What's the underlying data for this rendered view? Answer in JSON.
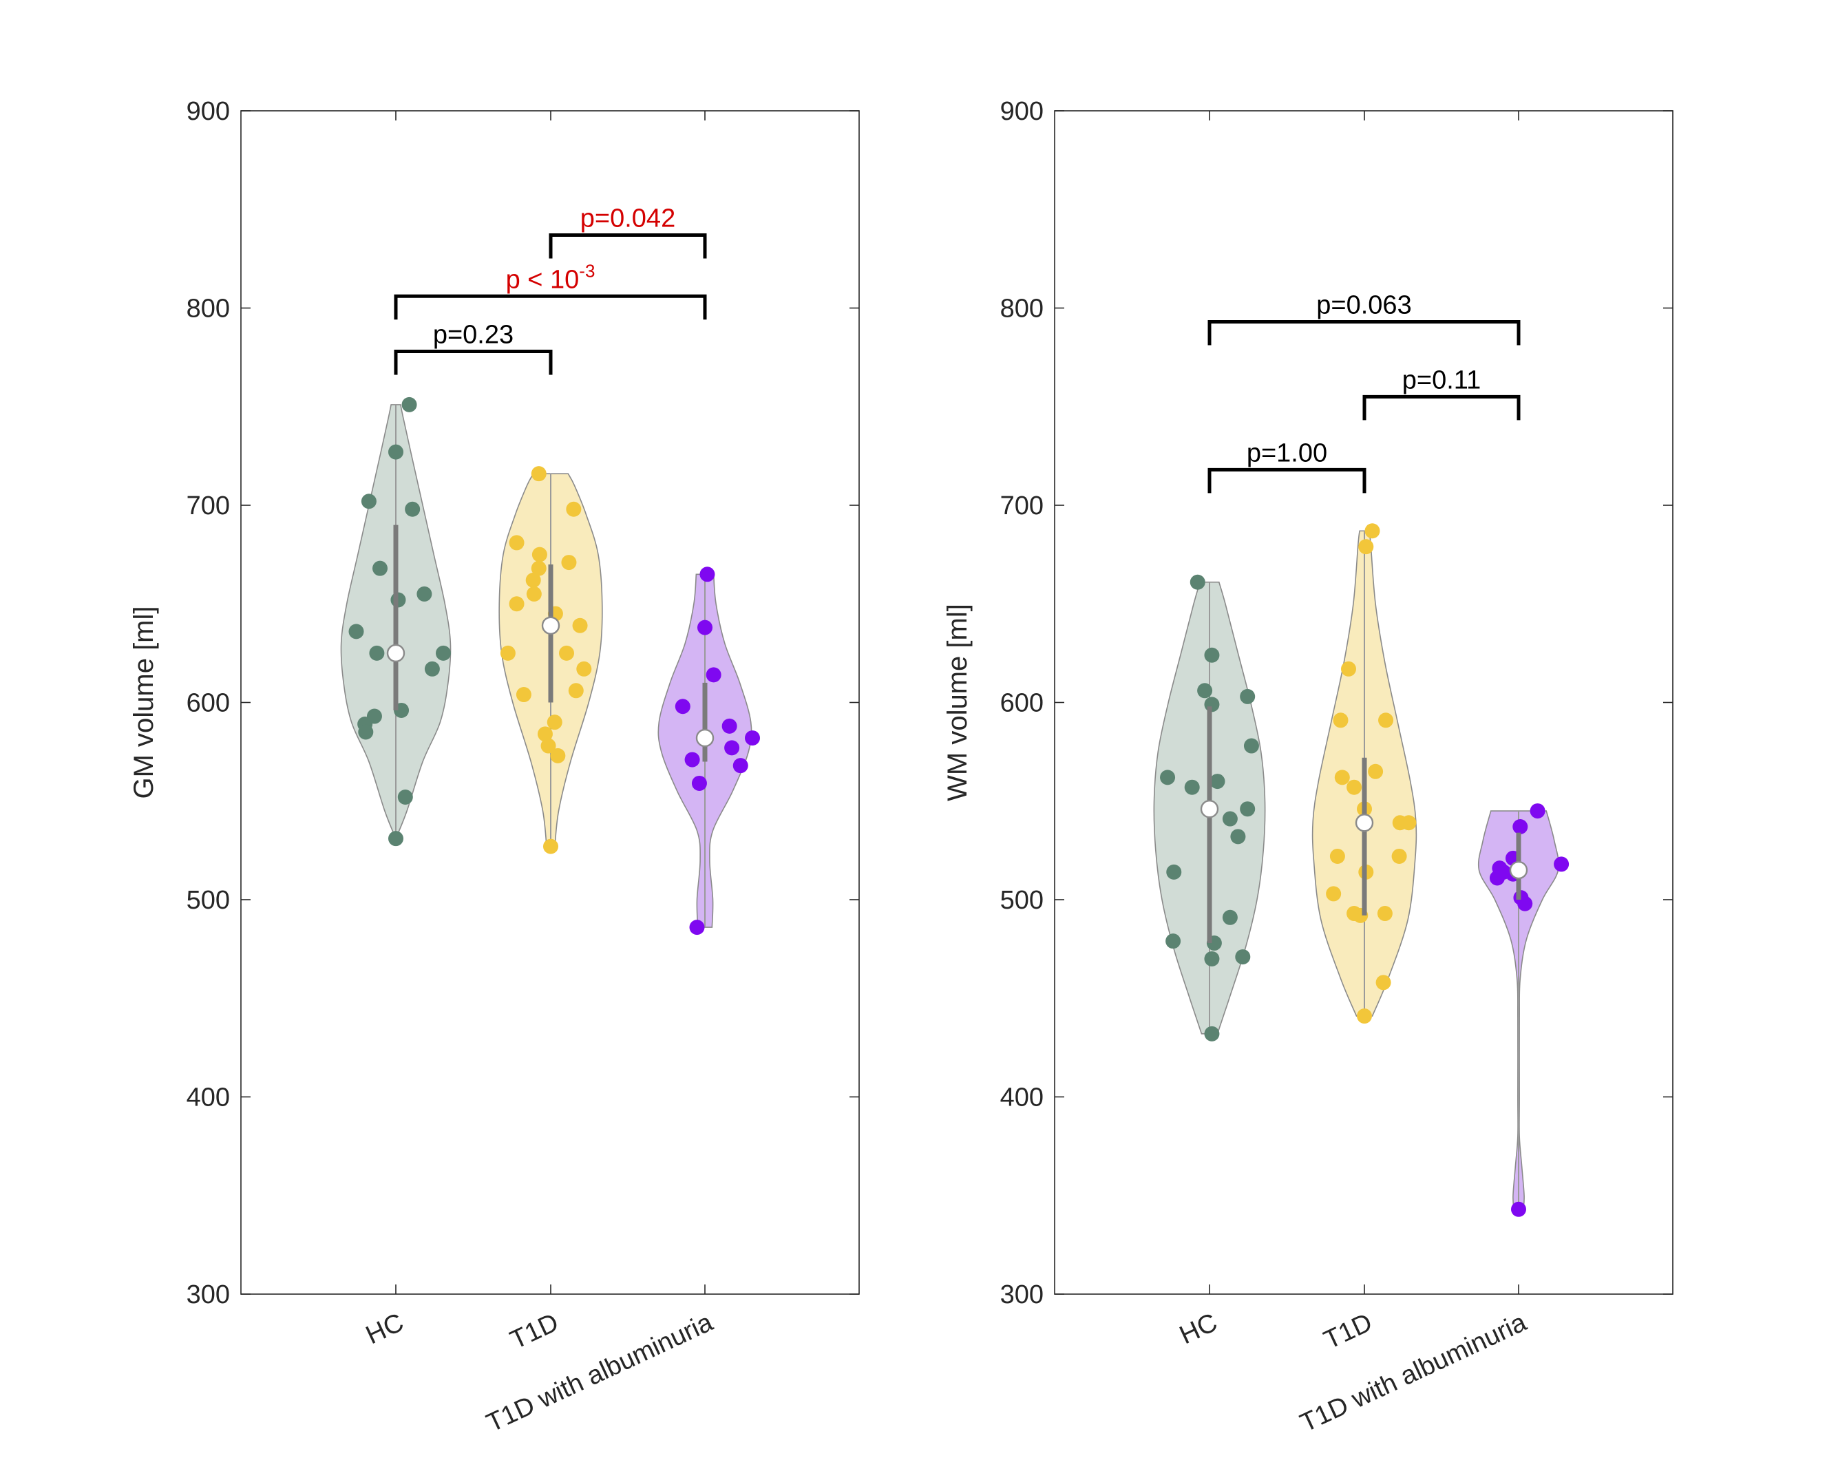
{
  "chart_data": [
    {
      "type": "violin",
      "ylabel": "GM volume [ml]",
      "ylim": [
        300,
        900
      ],
      "yticks": [
        300,
        400,
        500,
        600,
        700,
        800,
        900
      ],
      "categories": [
        "HC",
        "T1D",
        "T1D with albuminuria"
      ],
      "groups": [
        {
          "name": "HC",
          "fill": "#c9d6cf",
          "dot": "#5b8371",
          "range": [
            531,
            751
          ],
          "median": 625,
          "iqr": [
            596,
            690
          ],
          "shape": [
            [
              531,
              0
            ],
            [
              545,
              0.14
            ],
            [
              570,
              0.34
            ],
            [
              590,
              0.56
            ],
            [
              610,
              0.66
            ],
            [
              630,
              0.69
            ],
            [
              650,
              0.62
            ],
            [
              675,
              0.48
            ],
            [
              700,
              0.34
            ],
            [
              725,
              0.2
            ],
            [
              745,
              0.09
            ],
            [
              751,
              0.06
            ]
          ],
          "points": [
            [
              751,
              0.17
            ],
            [
              727,
              0.0
            ],
            [
              702,
              -0.34
            ],
            [
              698,
              0.21
            ],
            [
              668,
              -0.2
            ],
            [
              655,
              0.36
            ],
            [
              652,
              0.03
            ],
            [
              636,
              -0.5
            ],
            [
              625,
              -0.24
            ],
            [
              625,
              0.6
            ],
            [
              617,
              0.46
            ],
            [
              596,
              0.07
            ],
            [
              593,
              -0.27
            ],
            [
              589,
              -0.39
            ],
            [
              585,
              -0.38
            ],
            [
              552,
              0.12
            ],
            [
              531,
              0.0
            ]
          ]
        },
        {
          "name": "T1D",
          "fill": "#f8e8b0",
          "dot": "#f2c63a",
          "range": [
            526,
            716
          ],
          "median": 639,
          "iqr": [
            600,
            670
          ],
          "shape": [
            [
              526,
              0.05
            ],
            [
              545,
              0.1
            ],
            [
              570,
              0.25
            ],
            [
              600,
              0.48
            ],
            [
              625,
              0.62
            ],
            [
              650,
              0.65
            ],
            [
              675,
              0.6
            ],
            [
              695,
              0.45
            ],
            [
              710,
              0.3
            ],
            [
              716,
              0.22
            ]
          ],
          "points": [
            [
              716,
              -0.15
            ],
            [
              698,
              0.29
            ],
            [
              681,
              -0.43
            ],
            [
              675,
              -0.14
            ],
            [
              671,
              0.23
            ],
            [
              668,
              -0.15
            ],
            [
              662,
              -0.22
            ],
            [
              655,
              -0.21
            ],
            [
              650,
              -0.43
            ],
            [
              645,
              0.06
            ],
            [
              639,
              0.37
            ],
            [
              625,
              -0.54
            ],
            [
              625,
              0.2
            ],
            [
              617,
              0.42
            ],
            [
              606,
              0.32
            ],
            [
              604,
              -0.34
            ],
            [
              590,
              0.05
            ],
            [
              584,
              -0.07
            ],
            [
              578,
              -0.03
            ],
            [
              573,
              0.09
            ],
            [
              527,
              0.0
            ]
          ]
        },
        {
          "name": "T1D with albuminuria",
          "fill": "#cca8f2",
          "dot": "#7f08f0",
          "range": [
            486,
            665
          ],
          "median": 582,
          "iqr": [
            570,
            610
          ],
          "shape": [
            [
              486,
              0.09
            ],
            [
              500,
              0.1
            ],
            [
              520,
              0.06
            ],
            [
              535,
              0.1
            ],
            [
              555,
              0.35
            ],
            [
              575,
              0.55
            ],
            [
              590,
              0.58
            ],
            [
              610,
              0.44
            ],
            [
              630,
              0.25
            ],
            [
              650,
              0.14
            ],
            [
              665,
              0.11
            ]
          ],
          "points": [
            [
              665,
              0.03
            ],
            [
              638,
              0.0
            ],
            [
              614,
              0.11
            ],
            [
              598,
              -0.28
            ],
            [
              588,
              0.31
            ],
            [
              582,
              0.6
            ],
            [
              577,
              0.34
            ],
            [
              571,
              -0.16
            ],
            [
              568,
              0.45
            ],
            [
              559,
              -0.07
            ],
            [
              486,
              -0.1
            ]
          ]
        }
      ],
      "comparisons": [
        {
          "from": "HC",
          "to": "T1D",
          "label": "p=0.23",
          "significant": false,
          "bracket_y": 778
        },
        {
          "from": "HC",
          "to": "T1D with albuminuria",
          "label_base": "p < 10",
          "label_exp": "-3",
          "significant": true,
          "bracket_y": 806
        },
        {
          "from": "T1D",
          "to": "T1D with albuminuria",
          "label": "p=0.042",
          "significant": true,
          "bracket_y": 837
        }
      ]
    },
    {
      "type": "violin",
      "ylabel": "WM volume [ml]",
      "ylim": [
        300,
        900
      ],
      "yticks": [
        300,
        400,
        500,
        600,
        700,
        800,
        900
      ],
      "categories": [
        "HC",
        "T1D",
        "T1D with albuminuria"
      ],
      "groups": [
        {
          "name": "HC",
          "fill": "#c9d6cf",
          "dot": "#5b8371",
          "range": [
            432,
            661
          ],
          "median": 546,
          "iqr": [
            478,
            598
          ],
          "shape": [
            [
              432,
              0.1
            ],
            [
              450,
              0.25
            ],
            [
              475,
              0.45
            ],
            [
              500,
              0.6
            ],
            [
              525,
              0.68
            ],
            [
              550,
              0.7
            ],
            [
              575,
              0.65
            ],
            [
              600,
              0.52
            ],
            [
              625,
              0.36
            ],
            [
              650,
              0.2
            ],
            [
              661,
              0.12
            ]
          ],
          "points": [
            [
              661,
              -0.15
            ],
            [
              624,
              0.03
            ],
            [
              606,
              -0.06
            ],
            [
              603,
              0.48
            ],
            [
              599,
              0.03
            ],
            [
              578,
              0.53
            ],
            [
              562,
              -0.53
            ],
            [
              560,
              0.1
            ],
            [
              557,
              -0.22
            ],
            [
              546,
              0.48
            ],
            [
              541,
              0.26
            ],
            [
              532,
              0.36
            ],
            [
              514,
              -0.45
            ],
            [
              491,
              0.26
            ],
            [
              479,
              -0.46
            ],
            [
              478,
              0.06
            ],
            [
              470,
              0.03
            ],
            [
              471,
              0.42
            ],
            [
              432,
              0.03
            ]
          ]
        },
        {
          "name": "T1D",
          "fill": "#f8e8b0",
          "dot": "#f2c63a",
          "range": [
            441,
            687
          ],
          "median": 539,
          "iqr": [
            492,
            572
          ],
          "shape": [
            [
              441,
              0.1
            ],
            [
              460,
              0.3
            ],
            [
              490,
              0.55
            ],
            [
              520,
              0.64
            ],
            [
              540,
              0.65
            ],
            [
              560,
              0.58
            ],
            [
              590,
              0.42
            ],
            [
              620,
              0.26
            ],
            [
              650,
              0.14
            ],
            [
              680,
              0.08
            ],
            [
              687,
              0.06
            ]
          ],
          "points": [
            [
              687,
              0.1
            ],
            [
              679,
              0.02
            ],
            [
              617,
              -0.2
            ],
            [
              591,
              -0.3
            ],
            [
              591,
              0.27
            ],
            [
              565,
              0.14
            ],
            [
              562,
              -0.28
            ],
            [
              557,
              -0.13
            ],
            [
              546,
              0.0
            ],
            [
              539,
              0.56
            ],
            [
              539,
              0.45
            ],
            [
              522,
              -0.34
            ],
            [
              522,
              0.44
            ],
            [
              514,
              0.02
            ],
            [
              503,
              -0.39
            ],
            [
              493,
              -0.13
            ],
            [
              493,
              0.26
            ],
            [
              492,
              -0.05
            ],
            [
              458,
              0.24
            ],
            [
              441,
              0.0
            ]
          ]
        },
        {
          "name": "T1D with albuminuria",
          "fill": "#cca8f2",
          "dot": "#7f08f0",
          "range": [
            343,
            545
          ],
          "median": 515,
          "iqr": [
            500,
            534
          ],
          "shape": [
            [
              343,
              0.06
            ],
            [
              350,
              0.07
            ],
            [
              365,
              0.04
            ],
            [
              380,
              0.01
            ],
            [
              400,
              0.01
            ],
            [
              440,
              0.01
            ],
            [
              460,
              0.02
            ],
            [
              480,
              0.1
            ],
            [
              500,
              0.3
            ],
            [
              515,
              0.5
            ],
            [
              530,
              0.45
            ],
            [
              545,
              0.35
            ]
          ],
          "points": [
            [
              545,
              0.24
            ],
            [
              537,
              0.02
            ],
            [
              521,
              -0.07
            ],
            [
              518,
              0.54
            ],
            [
              516,
              -0.24
            ],
            [
              514,
              -0.19
            ],
            [
              513,
              -0.07
            ],
            [
              511,
              -0.27
            ],
            [
              501,
              0.03
            ],
            [
              498,
              0.08
            ],
            [
              343,
              0.0
            ]
          ]
        }
      ],
      "comparisons": [
        {
          "from": "HC",
          "to": "T1D",
          "label": "p=1.00",
          "significant": false,
          "bracket_y": 718
        },
        {
          "from": "T1D",
          "to": "T1D with albuminuria",
          "label": "p=0.11",
          "significant": false,
          "bracket_y": 755
        },
        {
          "from": "HC",
          "to": "T1D with albuminuria",
          "label": "p=0.063",
          "significant": false,
          "bracket_y": 793
        }
      ]
    }
  ]
}
